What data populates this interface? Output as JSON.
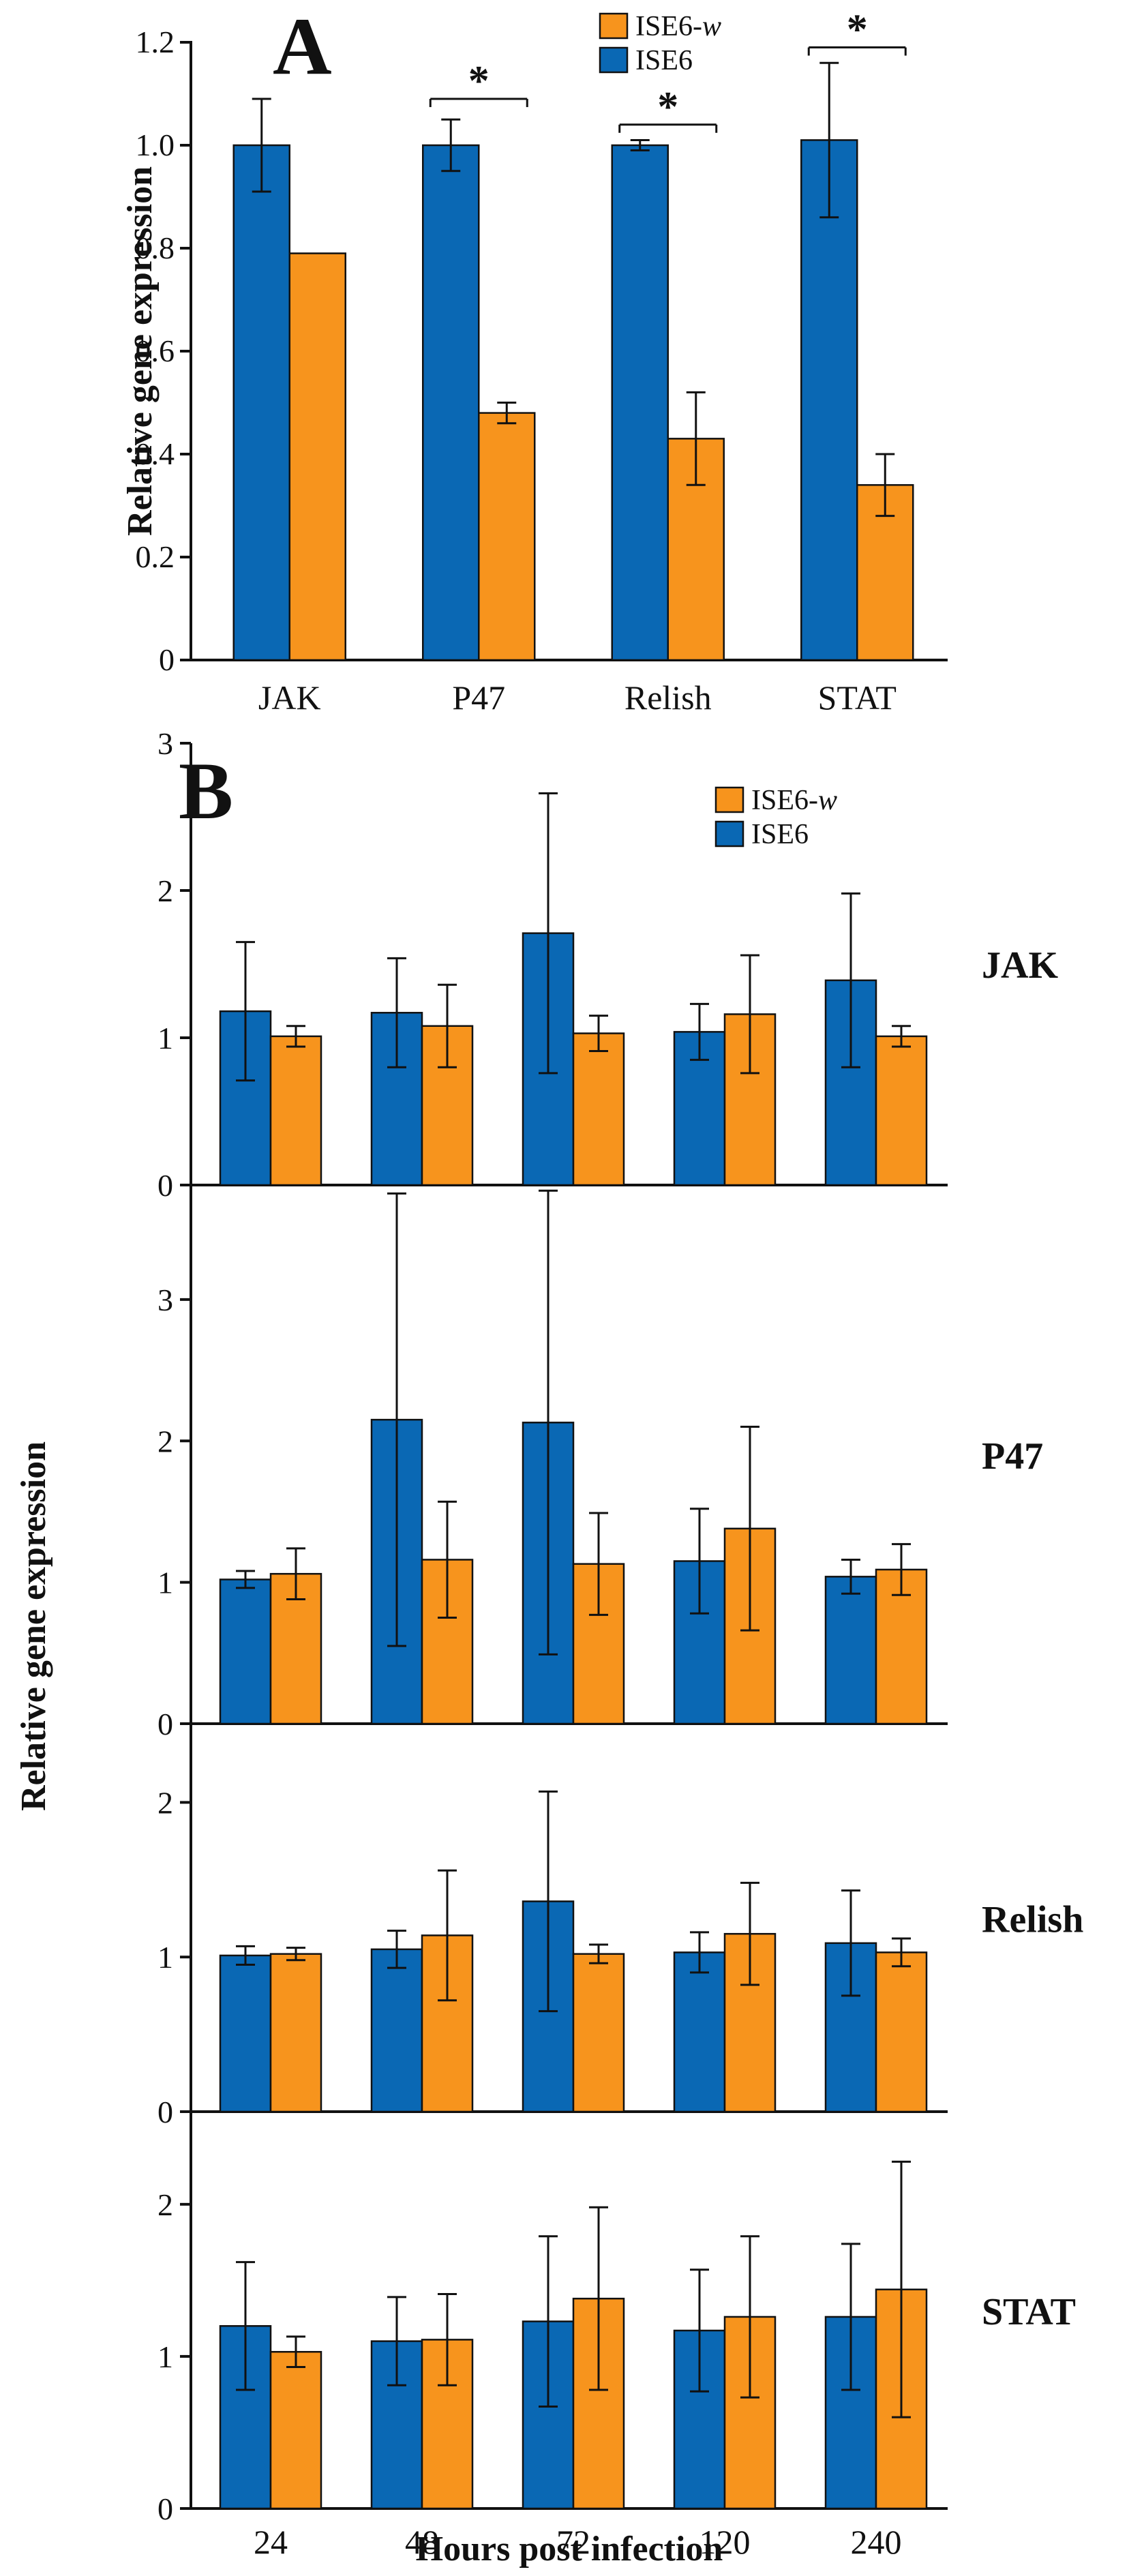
{
  "colors": {
    "ise6": "#0a68b4",
    "ise6w": "#f7941d",
    "axis": "#111111"
  },
  "legend": [
    {
      "key": "ise6w",
      "label": "ISE6-",
      "label_italic": "w"
    },
    {
      "key": "ise6",
      "label": "ISE6"
    }
  ],
  "chart_data": [
    {
      "panel": "A",
      "type": "bar",
      "ylabel": "Relative gene expression",
      "xlabel": "",
      "ylim": [
        0,
        1.2
      ],
      "yticks": [
        {
          "v": 0,
          "label": "0"
        },
        {
          "v": 0.2,
          "label": "0.2"
        },
        {
          "v": 0.4,
          "label": "0.4"
        },
        {
          "v": 0.6,
          "label": "0.6"
        },
        {
          "v": 0.8,
          "label": "0.8"
        },
        {
          "v": 1.0,
          "label": "1.0"
        },
        {
          "v": 1.2,
          "label": "1.2"
        }
      ],
      "categories": [
        "JAK",
        "P47",
        "Relish",
        "STAT"
      ],
      "series": [
        {
          "name": "ISE6",
          "key": "ise6",
          "values": [
            1.0,
            1.0,
            1.0,
            1.01
          ],
          "errors": [
            0.09,
            0.05,
            0.01,
            0.15
          ]
        },
        {
          "name": "ISE6-w",
          "key": "ise6w",
          "values": [
            0.79,
            0.48,
            0.43,
            0.34
          ],
          "errors": [
            0.0,
            0.02,
            0.09,
            0.06
          ]
        }
      ],
      "significance": [
        {
          "category": "P47",
          "label": "*",
          "y": 1.09
        },
        {
          "category": "Relish",
          "label": "*",
          "y": 1.04
        },
        {
          "category": "STAT",
          "label": "*",
          "y": 1.19
        }
      ]
    },
    {
      "panel": "B",
      "type": "bar",
      "ylabel": "Relative gene expression",
      "xlabel": "Hours post infection",
      "categories": [
        "24",
        "48",
        "72",
        "120",
        "240"
      ],
      "subplots": [
        {
          "gene": "JAK",
          "ylim": [
            0,
            3
          ],
          "yticks": [
            {
              "v": 0,
              "label": "0"
            },
            {
              "v": 1,
              "label": "1"
            },
            {
              "v": 2,
              "label": "2"
            },
            {
              "v": 3,
              "label": "3"
            }
          ],
          "series": [
            {
              "name": "ISE6",
              "key": "ise6",
              "values": [
                1.18,
                1.17,
                1.71,
                1.04,
                1.39
              ],
              "errors": [
                0.47,
                0.37,
                0.95,
                0.19,
                0.59
              ]
            },
            {
              "name": "ISE6-w",
              "key": "ise6w",
              "values": [
                1.01,
                1.08,
                1.03,
                1.16,
                1.01
              ],
              "errors": [
                0.07,
                0.28,
                0.12,
                0.4,
                0.07
              ]
            }
          ]
        },
        {
          "gene": "P47",
          "ylim": [
            0,
            3.8
          ],
          "yticks": [
            {
              "v": 0,
              "label": "0"
            },
            {
              "v": 1,
              "label": "1"
            },
            {
              "v": 2,
              "label": "2"
            },
            {
              "v": 3,
              "label": "3"
            }
          ],
          "series": [
            {
              "name": "ISE6",
              "key": "ise6",
              "values": [
                1.02,
                2.15,
                2.13,
                1.15,
                1.04
              ],
              "errors": [
                0.06,
                1.6,
                1.64,
                0.37,
                0.12
              ]
            },
            {
              "name": "ISE6-w",
              "key": "ise6w",
              "values": [
                1.06,
                1.16,
                1.13,
                1.38,
                1.09
              ],
              "errors": [
                0.18,
                0.41,
                0.36,
                0.72,
                0.18
              ]
            }
          ]
        },
        {
          "gene": "Relish",
          "ylim": [
            0,
            2.5
          ],
          "yticks": [
            {
              "v": 0,
              "label": "0"
            },
            {
              "v": 1,
              "label": "1"
            },
            {
              "v": 2,
              "label": "2"
            }
          ],
          "series": [
            {
              "name": "ISE6",
              "key": "ise6",
              "values": [
                1.01,
                1.05,
                1.36,
                1.03,
                1.09
              ],
              "errors": [
                0.06,
                0.12,
                0.71,
                0.13,
                0.34
              ]
            },
            {
              "name": "ISE6-w",
              "key": "ise6w",
              "values": [
                1.02,
                1.14,
                1.02,
                1.15,
                1.03
              ],
              "errors": [
                0.04,
                0.42,
                0.06,
                0.33,
                0.09
              ]
            }
          ]
        },
        {
          "gene": "STAT",
          "ylim": [
            0,
            2.6
          ],
          "yticks": [
            {
              "v": 0,
              "label": "0"
            },
            {
              "v": 1,
              "label": "1"
            },
            {
              "v": 2,
              "label": "2"
            }
          ],
          "series": [
            {
              "name": "ISE6",
              "key": "ise6",
              "values": [
                1.2,
                1.1,
                1.23,
                1.17,
                1.26
              ],
              "errors": [
                0.42,
                0.29,
                0.56,
                0.4,
                0.48
              ]
            },
            {
              "name": "ISE6-w",
              "key": "ise6w",
              "values": [
                1.03,
                1.11,
                1.38,
                1.26,
                1.44
              ],
              "errors": [
                0.1,
                0.3,
                0.6,
                0.53,
                0.84
              ]
            }
          ]
        }
      ]
    }
  ]
}
